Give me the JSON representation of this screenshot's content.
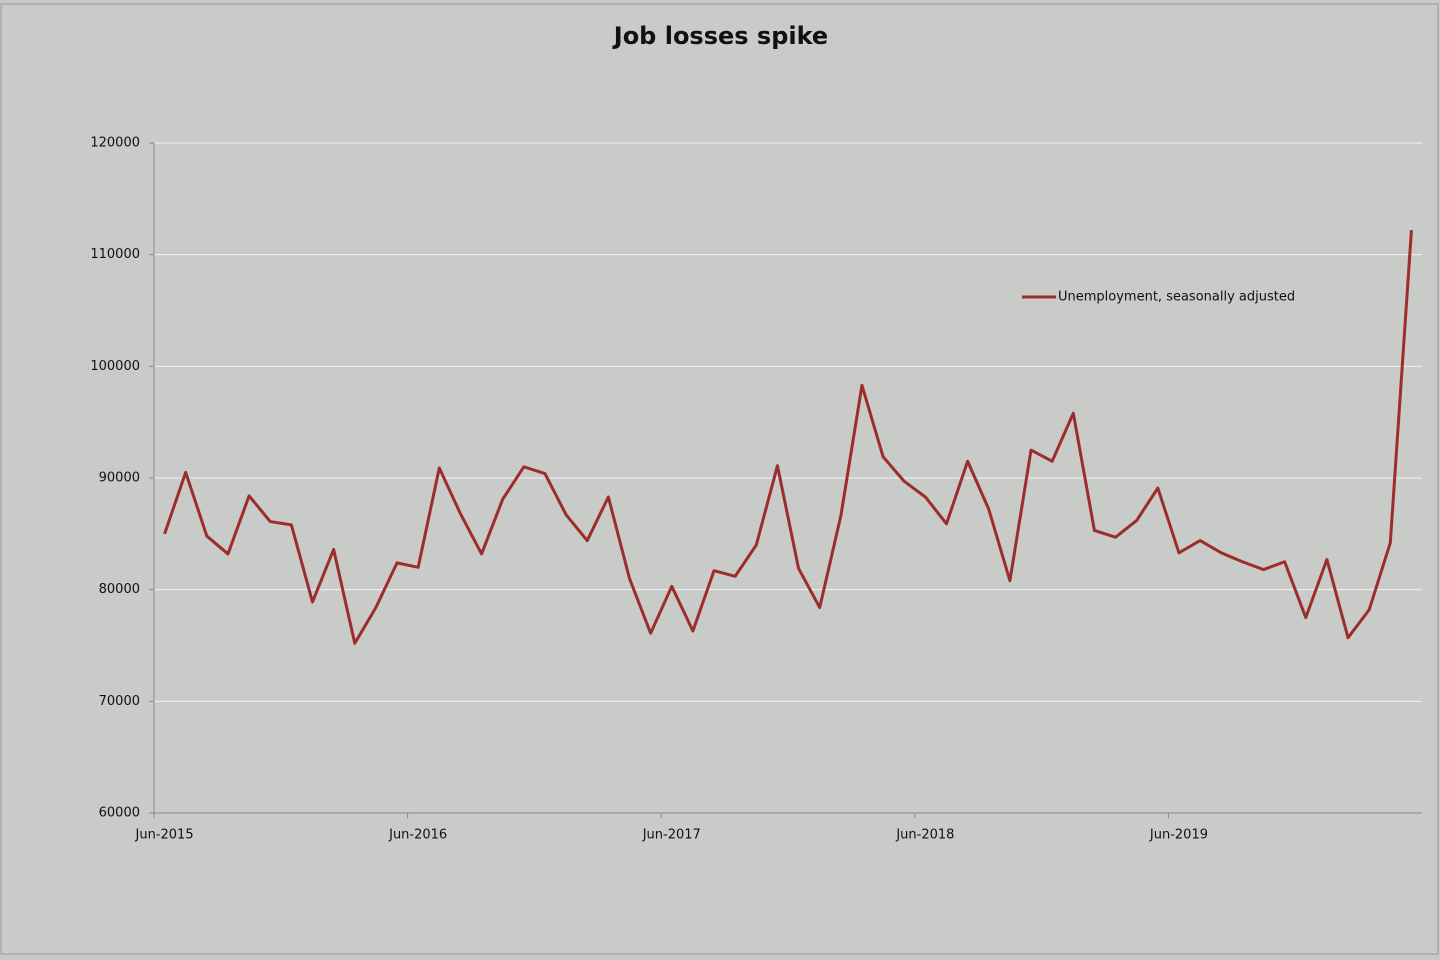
{
  "chart_data": {
    "type": "line",
    "title": "Job losses spike",
    "categories": [
      "Jun-2015",
      null,
      null,
      null,
      null,
      null,
      null,
      null,
      null,
      null,
      null,
      null,
      "Jun-2016",
      null,
      null,
      null,
      null,
      null,
      null,
      null,
      null,
      null,
      null,
      null,
      "Jun-2017",
      null,
      null,
      null,
      null,
      null,
      null,
      null,
      null,
      null,
      null,
      null,
      "Jun-2018",
      null,
      null,
      null,
      null,
      null,
      null,
      null,
      null,
      null,
      null,
      null,
      "Jun-2019",
      null,
      null,
      null,
      null,
      null,
      null,
      null,
      null,
      null,
      null,
      null
    ],
    "series": [
      {
        "name": "Unemployment, seasonally adjusted",
        "color": "#9b2d2d",
        "values": [
          85000,
          90500,
          84800,
          83200,
          88400,
          86100,
          85800,
          78900,
          83600,
          75200,
          78400,
          82400,
          82000,
          90900,
          86800,
          83200,
          88100,
          91000,
          90400,
          86700,
          84400,
          88300,
          81000,
          76100,
          80300,
          76300,
          81700,
          81200,
          84000,
          91100,
          81900,
          78400,
          86600,
          98300,
          91900,
          89700,
          88300,
          85900,
          91500,
          87200,
          80800,
          92500,
          91500,
          95800,
          85300,
          84700,
          86200,
          89100,
          83300,
          84400,
          83300,
          82500,
          81800,
          82500,
          77500,
          82700,
          75700,
          78200,
          84200,
          112200
        ]
      }
    ],
    "ylim": [
      60000,
      120000
    ],
    "yticks": [
      60000,
      70000,
      80000,
      90000,
      100000,
      110000,
      120000
    ],
    "grid": true,
    "legend": "upper right"
  }
}
